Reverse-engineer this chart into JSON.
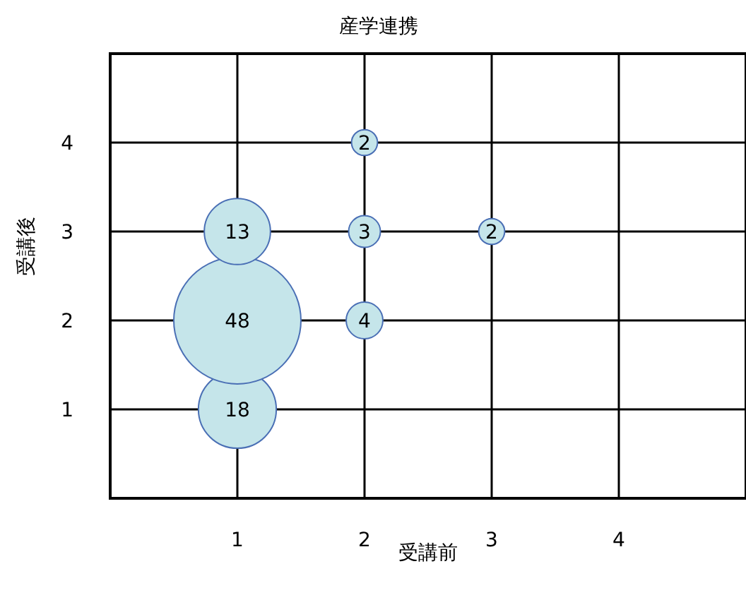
{
  "chart_data": {
    "type": "bubble",
    "title": "産学連携",
    "xlabel": "受講前",
    "ylabel": "受講後",
    "x": [
      1,
      1,
      1,
      2,
      2,
      2,
      3
    ],
    "values": [
      1,
      2,
      3,
      2,
      3,
      4,
      3
    ],
    "sizes": [
      18,
      48,
      13,
      4,
      3,
      2,
      2
    ],
    "value_labels": [
      "18",
      "48",
      "13",
      "4",
      "3",
      "2",
      "2"
    ],
    "color": "#c5e5ea",
    "xlim": [
      0,
      5
    ],
    "xticks": [
      1,
      2,
      3,
      4
    ],
    "ylim": [
      0,
      5
    ],
    "yticks": [
      1,
      2,
      3,
      4
    ],
    "grid": true
  }
}
